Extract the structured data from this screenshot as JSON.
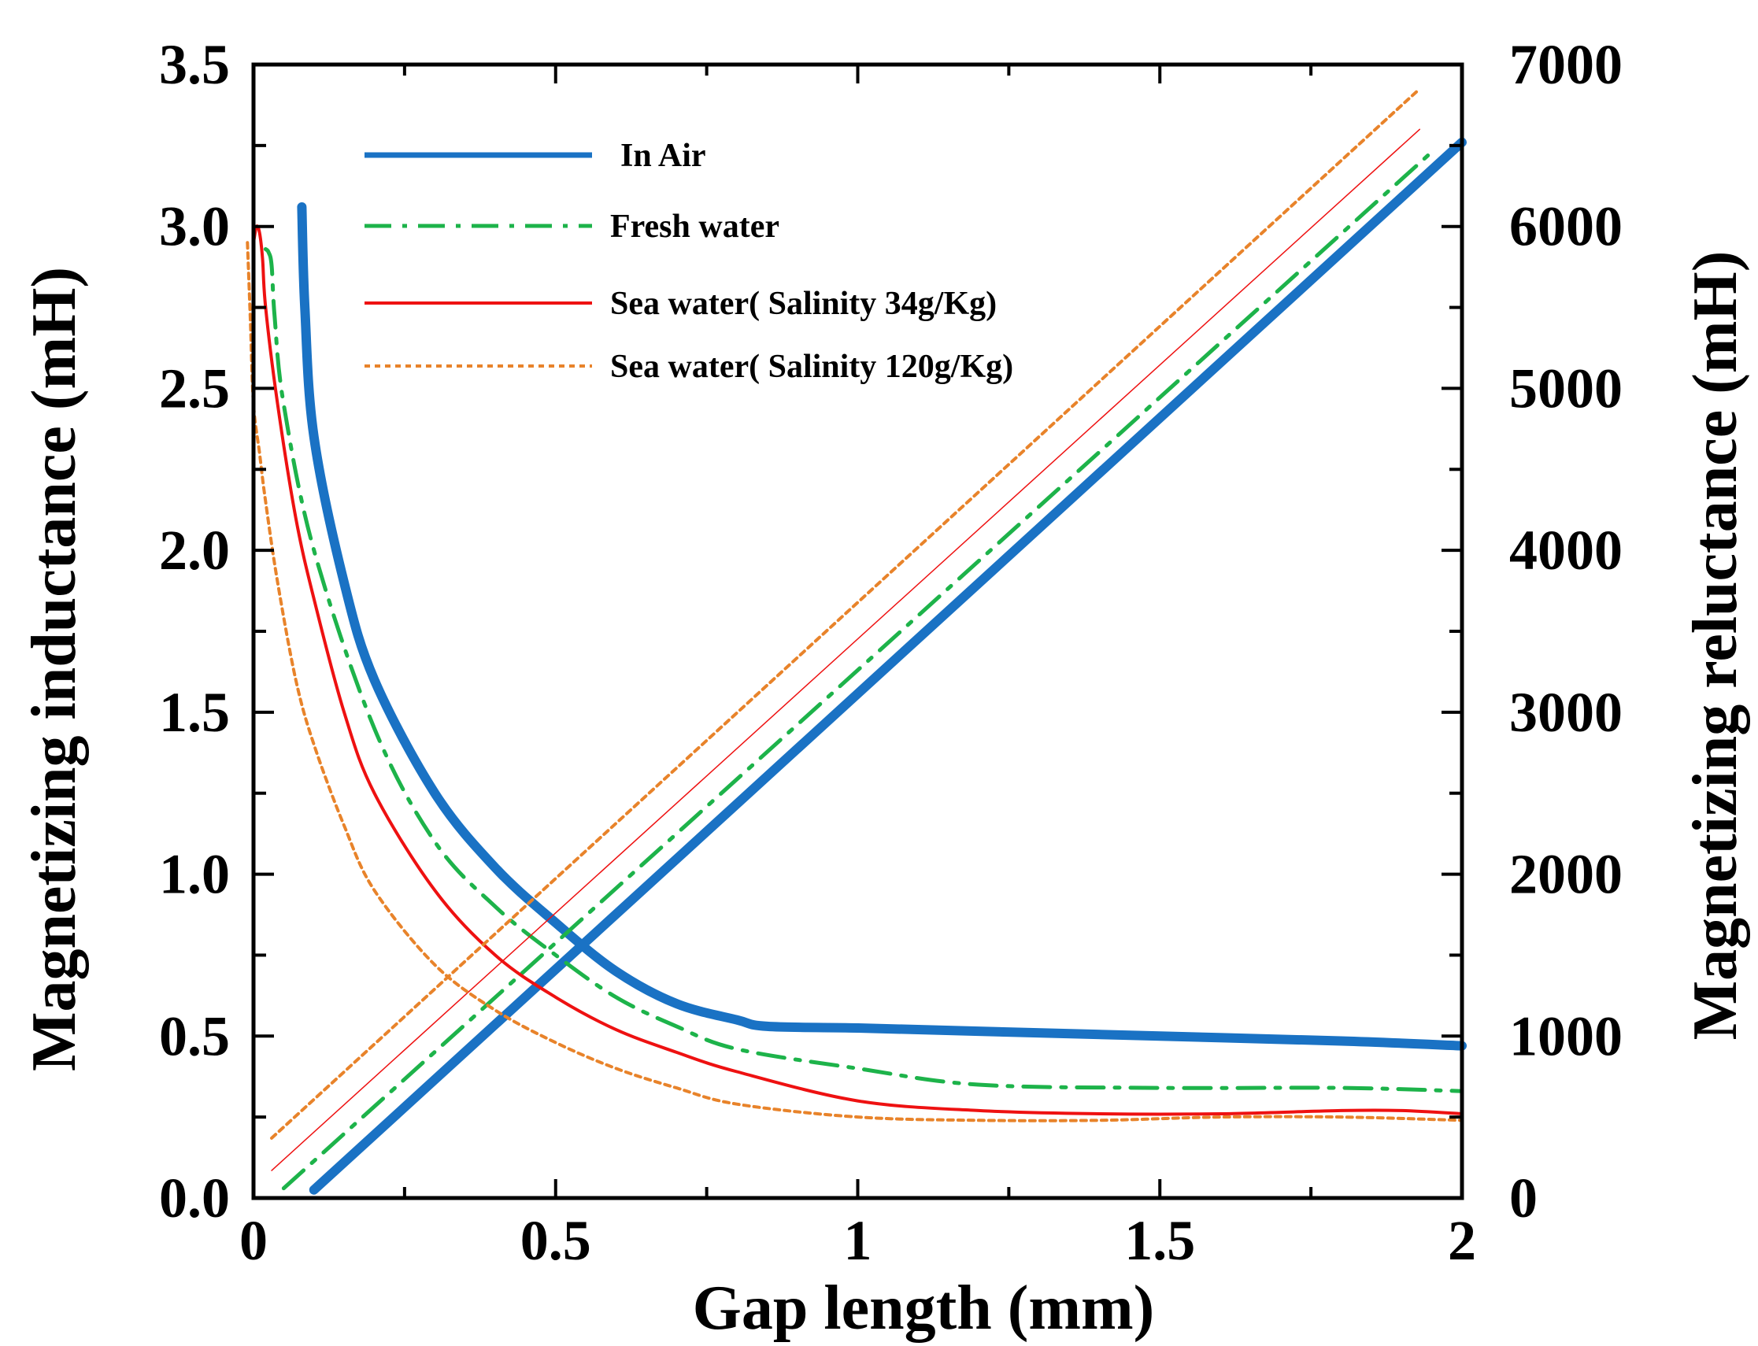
{
  "chart_data": {
    "type": "line",
    "xlabel": "Gap length (mm)",
    "ylabel_left": "Magnetizing inductance (mH)",
    "ylabel_right": "Magnetizing reluctance (mH)",
    "xlim": [
      0,
      2
    ],
    "ylim_left": [
      0,
      3.5
    ],
    "ylim_right": [
      0,
      7000
    ],
    "x_ticks": [
      0,
      0.5,
      1,
      1.5,
      2
    ],
    "x_tick_labels": [
      "0",
      "0.5",
      "1",
      "1.5",
      "2"
    ],
    "y_left_ticks": [
      0,
      0.5,
      1,
      1.5,
      2,
      2.5,
      3,
      3.5
    ],
    "y_left_tick_labels": [
      "0.0",
      "0.5",
      "1.0",
      "1.5",
      "2.0",
      "2.5",
      "3.0",
      "3.5"
    ],
    "y_right_ticks": [
      0,
      1000,
      2000,
      3000,
      4000,
      5000,
      6000,
      7000
    ],
    "y_right_tick_labels": [
      "0",
      "1000",
      "2000",
      "3000",
      "4000",
      "5000",
      "6000",
      "7000"
    ],
    "grid": false,
    "legend_position": "top-left",
    "series": [
      {
        "name": "In Air",
        "color": "#1a72c4",
        "style": "solid-thick",
        "inductance": {
          "x": [
            0.08,
            0.085,
            0.1,
            0.15,
            0.2,
            0.3,
            0.4,
            0.5,
            0.6,
            0.7,
            0.8,
            0.85,
            1.0,
            1.2,
            1.5,
            1.8,
            2.0
          ],
          "y": [
            3.06,
            2.75,
            2.35,
            1.9,
            1.6,
            1.25,
            1.02,
            0.85,
            0.7,
            0.6,
            0.55,
            0.53,
            0.525,
            0.515,
            0.5,
            0.485,
            0.47
          ]
        },
        "reluctance": {
          "x": [
            0.1,
            2.0
          ],
          "y": [
            50,
            6520
          ]
        }
      },
      {
        "name": "Fresh water",
        "color": "#1db34a",
        "style": "dash-dot",
        "inductance": {
          "x": [
            0.02,
            0.025,
            0.03,
            0.035,
            0.05,
            0.1,
            0.2,
            0.3,
            0.4,
            0.5,
            0.6,
            0.7,
            0.8,
            1.0,
            1.2,
            1.5,
            1.8,
            2.0
          ],
          "y": [
            2.93,
            2.92,
            2.88,
            2.72,
            2.45,
            2.0,
            1.45,
            1.1,
            0.9,
            0.75,
            0.62,
            0.53,
            0.46,
            0.4,
            0.35,
            0.34,
            0.34,
            0.33
          ]
        },
        "reluctance": {
          "x": [
            0.05,
            1.95
          ],
          "y": [
            60,
            6460
          ]
        }
      },
      {
        "name": "Sea water( Salinity 34g/Kg)",
        "color": "#ee1111",
        "style": "solid",
        "inductance": {
          "x": [
            0.0,
            0.005,
            0.01,
            0.015,
            0.02,
            0.04,
            0.07,
            0.1,
            0.15,
            0.2,
            0.3,
            0.4,
            0.5,
            0.6,
            0.7,
            0.8,
            1.0,
            1.2,
            1.4,
            1.6,
            1.8,
            1.9,
            2.0
          ],
          "y": [
            2.95,
            3.0,
            2.98,
            2.9,
            2.75,
            2.45,
            2.1,
            1.85,
            1.5,
            1.25,
            0.95,
            0.75,
            0.62,
            0.52,
            0.45,
            0.39,
            0.3,
            0.27,
            0.26,
            0.26,
            0.27,
            0.27,
            0.26
          ]
        },
        "reluctance": {
          "x": [
            0.03,
            1.93
          ],
          "y": [
            170,
            6600
          ]
        }
      },
      {
        "name": "Sea water( Salinity 120g/Kg)",
        "color": "#e8832a",
        "style": "dotted",
        "inductance": {
          "x": [
            -0.01,
            -0.005,
            0.0,
            0.01,
            0.02,
            0.04,
            0.07,
            0.1,
            0.15,
            0.2,
            0.3,
            0.4,
            0.5,
            0.6,
            0.7,
            0.8,
            1.0,
            1.2,
            1.4,
            1.6,
            1.8,
            2.0
          ],
          "y": [
            2.95,
            2.7,
            2.45,
            2.3,
            2.15,
            1.9,
            1.6,
            1.4,
            1.15,
            0.95,
            0.72,
            0.58,
            0.48,
            0.4,
            0.34,
            0.29,
            0.25,
            0.24,
            0.24,
            0.25,
            0.25,
            0.24
          ]
        },
        "reluctance": {
          "x": [
            0.03,
            1.93
          ],
          "y": [
            370,
            6850
          ]
        }
      }
    ]
  }
}
